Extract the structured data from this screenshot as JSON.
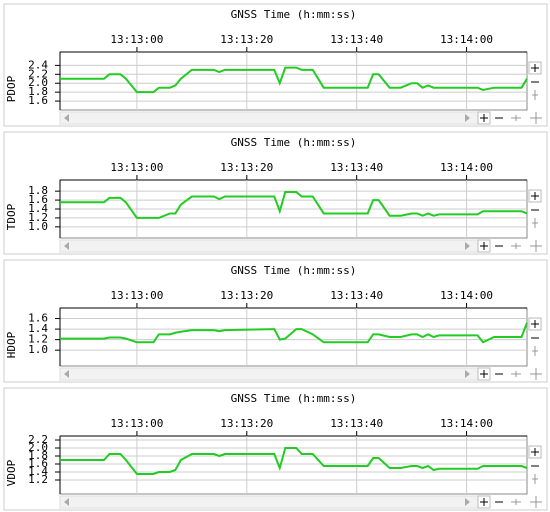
{
  "chart_data": [
    {
      "type": "line",
      "title": "GNSS Time (h:mm:ss)",
      "ylabel": "PDOP",
      "color": "#22cc22",
      "grid": true,
      "x": [
        47566,
        47574,
        47575,
        47577,
        47578,
        47580,
        47583,
        47584,
        47586,
        47587,
        47588,
        47590,
        47594,
        47595,
        47596,
        47605,
        47606,
        47607,
        47609,
        47610,
        47612,
        47614,
        47622,
        47623,
        47624,
        47626,
        47628,
        47630,
        47631,
        47632,
        47633,
        47634,
        47635,
        47642,
        47643,
        47645,
        47650,
        47651
      ],
      "values": [
        2.1,
        2.1,
        2.2,
        2.2,
        2.1,
        1.8,
        1.8,
        1.9,
        1.9,
        1.95,
        2.1,
        2.3,
        2.3,
        2.25,
        2.3,
        2.3,
        2.0,
        2.35,
        2.35,
        2.3,
        2.3,
        1.9,
        1.9,
        2.2,
        2.2,
        1.9,
        1.9,
        2.0,
        2.0,
        1.9,
        1.95,
        1.9,
        1.9,
        1.9,
        1.85,
        1.9,
        1.9,
        2.1
      ],
      "xlim": [
        47566,
        47651
      ],
      "xticks": [
        {
          "value": 47580,
          "label": "13:13:00"
        },
        {
          "value": 47600,
          "label": "13:13:20"
        },
        {
          "value": 47620,
          "label": "13:13:40"
        },
        {
          "value": 47640,
          "label": "13:14:00"
        }
      ],
      "ylim": [
        1.4,
        2.7
      ],
      "yticks": [
        {
          "value": 2.4,
          "label": "2.4"
        },
        {
          "value": 2.2,
          "label": "2.2"
        },
        {
          "value": 2.0,
          "label": "2.0"
        },
        {
          "value": 1.8,
          "label": "1.8"
        },
        {
          "value": 1.6,
          "label": "1.6"
        }
      ]
    },
    {
      "type": "line",
      "title": "GNSS Time (h:mm:ss)",
      "ylabel": "TDOP",
      "color": "#22cc22",
      "grid": true,
      "x": [
        47566,
        47574,
        47575,
        47577,
        47578,
        47580,
        47583,
        47584,
        47586,
        47587,
        47588,
        47590,
        47594,
        47595,
        47596,
        47605,
        47606,
        47607,
        47609,
        47610,
        47612,
        47614,
        47622,
        47623,
        47624,
        47626,
        47628,
        47630,
        47631,
        47632,
        47633,
        47634,
        47635,
        47642,
        47643,
        47645,
        47650,
        47651
      ],
      "values": [
        1.55,
        1.55,
        1.65,
        1.65,
        1.55,
        1.2,
        1.2,
        1.2,
        1.3,
        1.3,
        1.5,
        1.68,
        1.68,
        1.62,
        1.68,
        1.68,
        1.35,
        1.78,
        1.78,
        1.68,
        1.68,
        1.3,
        1.3,
        1.6,
        1.6,
        1.25,
        1.25,
        1.3,
        1.3,
        1.25,
        1.3,
        1.25,
        1.28,
        1.28,
        1.35,
        1.35,
        1.35,
        1.3
      ],
      "xlim": [
        47566,
        47651
      ],
      "xticks": [
        {
          "value": 47580,
          "label": "13:13:00"
        },
        {
          "value": 47600,
          "label": "13:13:20"
        },
        {
          "value": 47620,
          "label": "13:13:40"
        },
        {
          "value": 47640,
          "label": "13:14:00"
        }
      ],
      "ylim": [
        0.75,
        2.05
      ],
      "yticks": [
        1.8,
        1.6,
        1.4,
        1.2,
        {
          "value": 1.0,
          "label": "1.0"
        }
      ]
    },
    {
      "type": "line",
      "title": "GNSS Time (h:mm:ss)",
      "ylabel": "HDOP",
      "color": "#22cc22",
      "grid": true,
      "x": [
        47566,
        47574,
        47575,
        47577,
        47578,
        47580,
        47583,
        47584,
        47586,
        47587,
        47588,
        47590,
        47594,
        47595,
        47596,
        47605,
        47606,
        47607,
        47609,
        47610,
        47612,
        47614,
        47622,
        47623,
        47624,
        47626,
        47628,
        47630,
        47631,
        47632,
        47633,
        47634,
        47635,
        47642,
        47643,
        47645,
        47650,
        47651
      ],
      "values": [
        1.22,
        1.22,
        1.24,
        1.24,
        1.22,
        1.15,
        1.15,
        1.3,
        1.3,
        1.33,
        1.35,
        1.38,
        1.38,
        1.36,
        1.38,
        1.4,
        1.2,
        1.22,
        1.4,
        1.4,
        1.3,
        1.15,
        1.15,
        1.3,
        1.3,
        1.25,
        1.25,
        1.3,
        1.3,
        1.25,
        1.3,
        1.25,
        1.28,
        1.28,
        1.15,
        1.25,
        1.25,
        1.52
      ],
      "xlim": [
        47566,
        47651
      ],
      "xticks": [
        {
          "value": 47580,
          "label": "13:13:00"
        },
        {
          "value": 47600,
          "label": "13:13:20"
        },
        {
          "value": 47620,
          "label": "13:13:40"
        },
        {
          "value": 47640,
          "label": "13:14:00"
        }
      ],
      "ylim": [
        0.7,
        1.8
      ],
      "yticks": [
        1.6,
        1.4,
        1.2,
        {
          "value": 1.0,
          "label": "1.0"
        }
      ]
    },
    {
      "type": "line",
      "title": "GNSS Time (h:mm:ss)",
      "ylabel": "VDOP",
      "color": "#22cc22",
      "grid": true,
      "x": [
        47566,
        47574,
        47575,
        47577,
        47578,
        47580,
        47583,
        47584,
        47586,
        47587,
        47588,
        47590,
        47594,
        47595,
        47596,
        47605,
        47606,
        47607,
        47609,
        47610,
        47612,
        47614,
        47622,
        47623,
        47624,
        47626,
        47628,
        47630,
        47631,
        47632,
        47633,
        47634,
        47635,
        47642,
        47643,
        47645,
        47650,
        47651
      ],
      "values": [
        1.7,
        1.7,
        1.85,
        1.85,
        1.7,
        1.35,
        1.35,
        1.4,
        1.4,
        1.45,
        1.7,
        1.85,
        1.85,
        1.8,
        1.85,
        1.85,
        1.5,
        2.0,
        2.0,
        1.85,
        1.85,
        1.55,
        1.55,
        1.75,
        1.75,
        1.5,
        1.5,
        1.55,
        1.55,
        1.5,
        1.55,
        1.45,
        1.48,
        1.48,
        1.55,
        1.55,
        1.55,
        1.5
      ],
      "xlim": [
        47566,
        47651
      ],
      "xticks": [
        {
          "value": 47580,
          "label": "13:13:00"
        },
        {
          "value": 47600,
          "label": "13:13:20"
        },
        {
          "value": 47620,
          "label": "13:13:40"
        },
        {
          "value": 47640,
          "label": "13:14:00"
        }
      ],
      "ylim": [
        0.85,
        2.3
      ],
      "yticks": [
        2.2,
        {
          "value": 2.0,
          "label": "2.0"
        },
        1.8,
        1.6,
        1.4,
        1.2
      ]
    }
  ]
}
